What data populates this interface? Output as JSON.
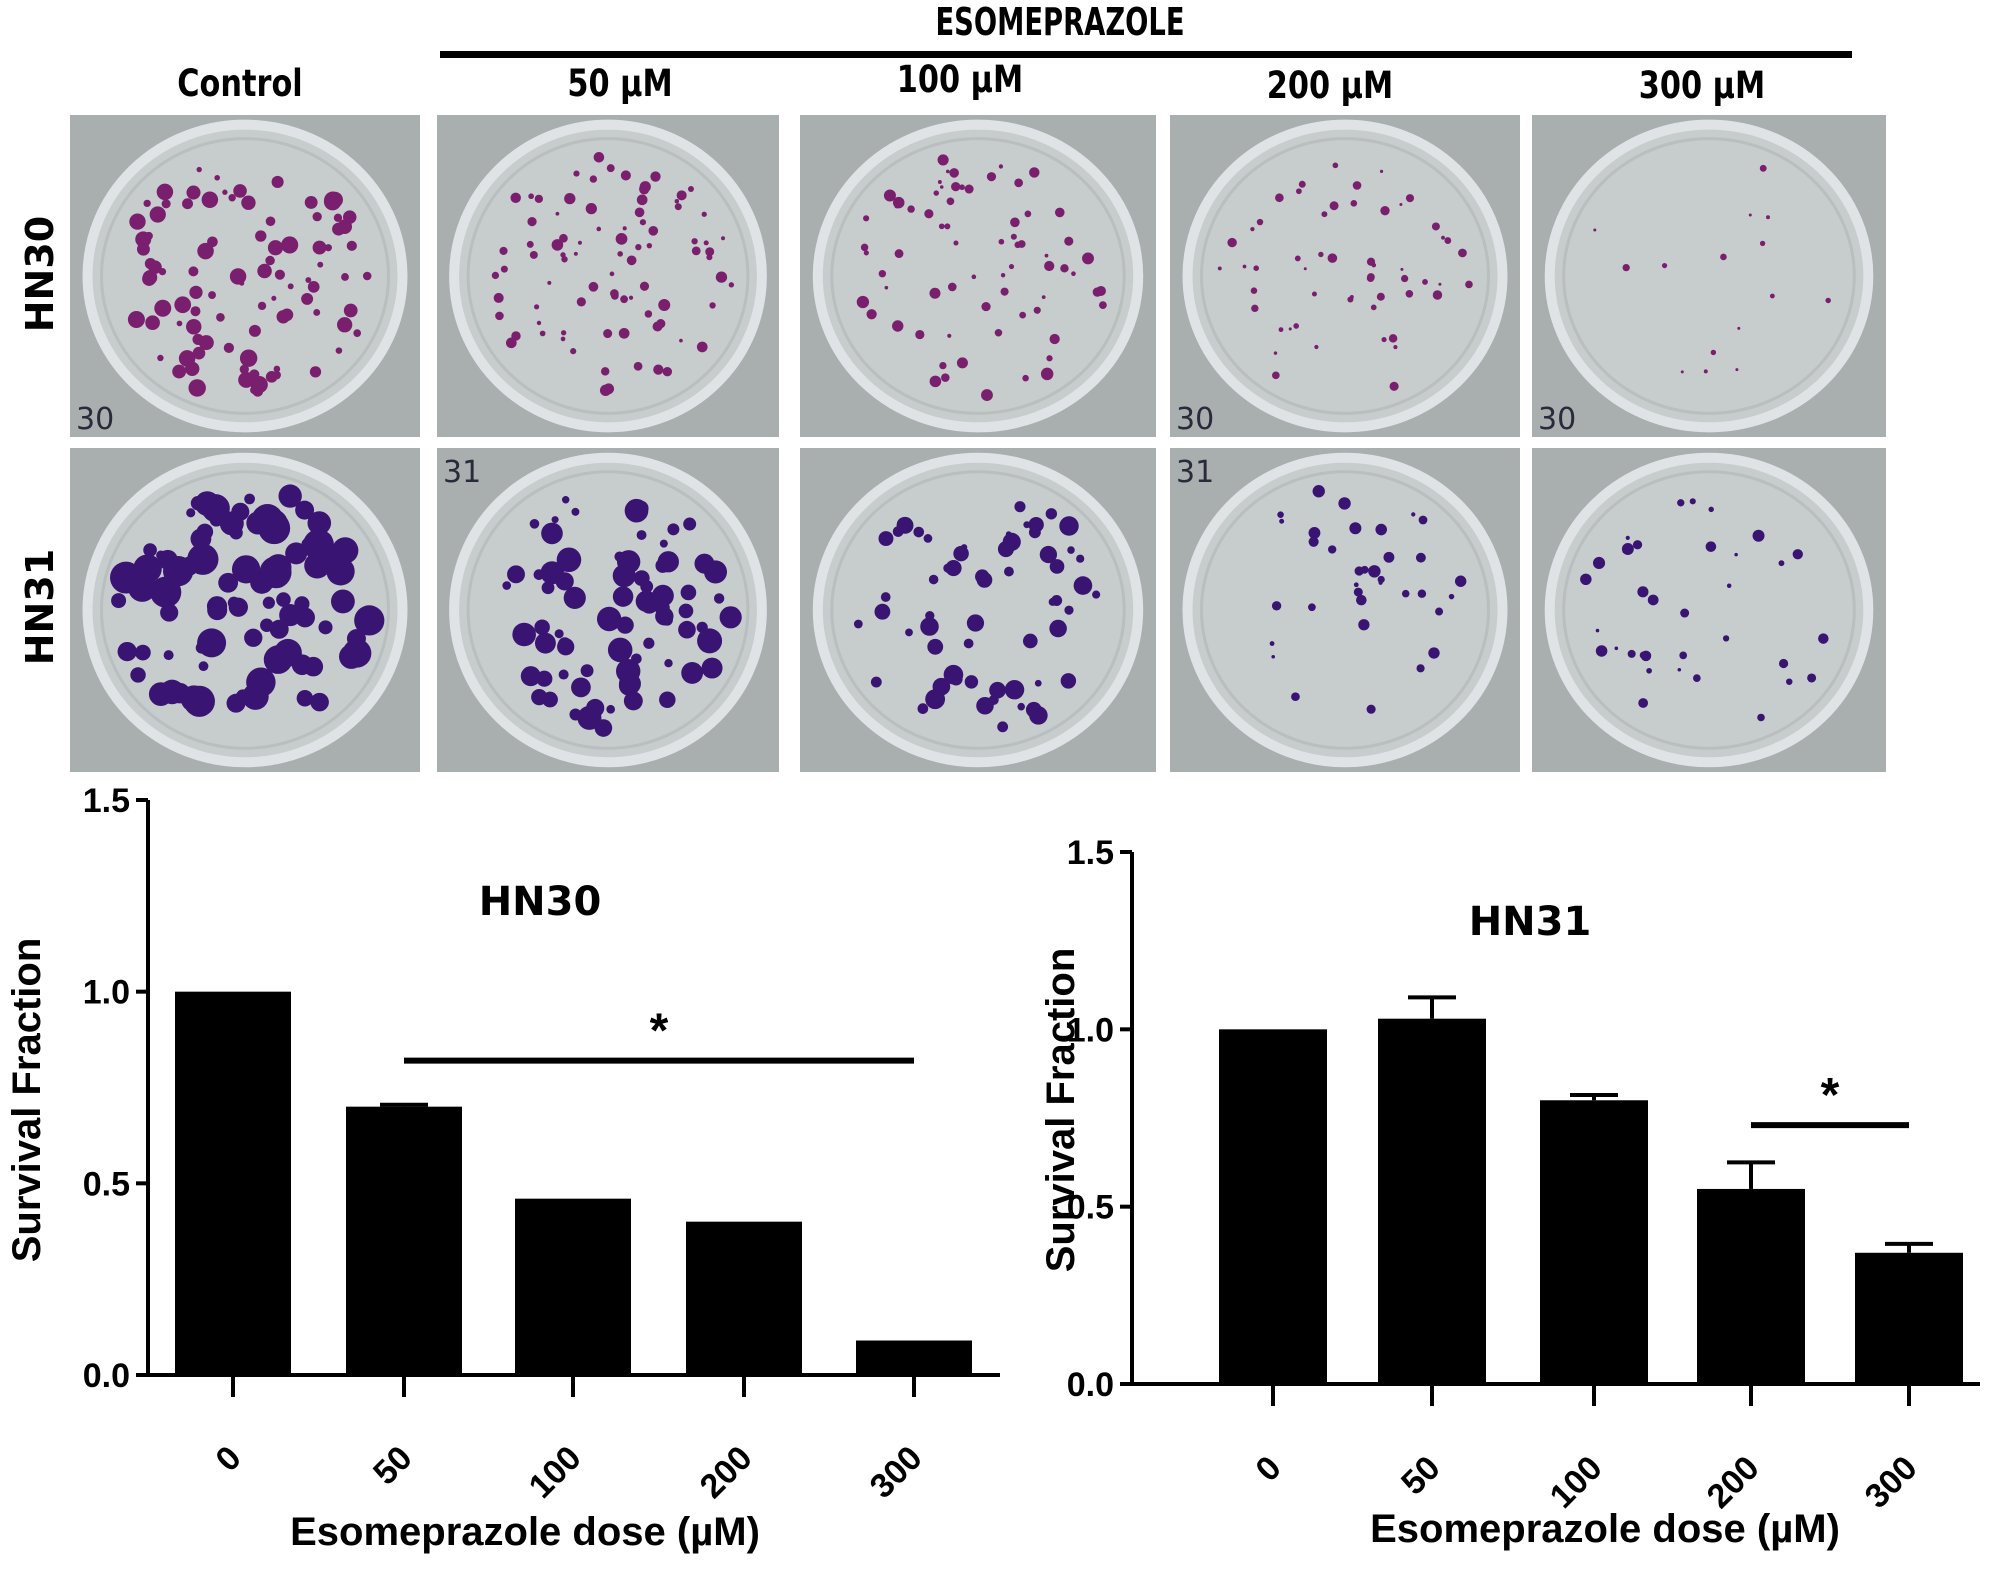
{
  "figure": {
    "drug_header": "ESOMEPRAZOLE",
    "columns": [
      {
        "label": "Control"
      },
      {
        "label": "50 µM"
      },
      {
        "label": "100 µM"
      },
      {
        "label": "200 µM"
      },
      {
        "label": "300 µM"
      }
    ],
    "rows": [
      {
        "label": "HN30"
      },
      {
        "label": "HN31"
      }
    ],
    "plate_colors": {
      "background": "#a8afae",
      "dish": "#c7cccc",
      "rim": "#dfe3e6",
      "colony_hn30": "#7a1f6e",
      "colony_hn31": "#3a1473"
    },
    "plates": [
      [
        {
          "colonies": 95,
          "size": 7,
          "annotation": "30"
        },
        {
          "colonies": 85,
          "size": 5,
          "annotation": ""
        },
        {
          "colonies": 70,
          "size": 5,
          "annotation": ""
        },
        {
          "colonies": 55,
          "size": 4,
          "annotation": "30"
        },
        {
          "colonies": 15,
          "size": 3,
          "annotation": "30"
        }
      ],
      [
        {
          "colonies": 90,
          "size": 13,
          "annotation": ""
        },
        {
          "colonies": 80,
          "size": 10,
          "annotation": "31"
        },
        {
          "colonies": 60,
          "size": 8,
          "annotation": ""
        },
        {
          "colonies": 35,
          "size": 5,
          "annotation": "31"
        },
        {
          "colonies": 35,
          "size": 5,
          "annotation": ""
        }
      ]
    ]
  },
  "chart_data": [
    {
      "type": "bar",
      "title": "HN30",
      "xlabel": "Esomeprazole dose (µM)",
      "ylabel": "Survival Fraction",
      "categories": [
        "0",
        "50",
        "100",
        "200",
        "300"
      ],
      "values": [
        1.0,
        0.7,
        0.46,
        0.4,
        0.09
      ],
      "error": [
        0.0,
        0.005,
        0.0,
        0.0,
        0.0
      ],
      "ylim": [
        0,
        1.5
      ],
      "yticks": [
        "0.0",
        "0.5",
        "1.0",
        "1.5"
      ],
      "significance": {
        "label": "*",
        "from": "50",
        "to": "300",
        "y": 0.82
      },
      "bar_color": "#000000",
      "grid": false
    },
    {
      "type": "bar",
      "title": "HN31",
      "xlabel": "Esomeprazole dose (µM)",
      "ylabel": "Survival Fraction",
      "categories": [
        "0",
        "50",
        "100",
        "200",
        "300"
      ],
      "values": [
        1.0,
        1.03,
        0.8,
        0.55,
        0.37
      ],
      "error": [
        0.0,
        0.06,
        0.015,
        0.075,
        0.025
      ],
      "ylim": [
        0,
        1.5
      ],
      "yticks": [
        "0.0",
        "0.5",
        "1.0",
        "1.5"
      ],
      "significance": {
        "label": "*",
        "from": "200",
        "to": "300",
        "y": 0.73
      },
      "bar_color": "#000000",
      "grid": false
    }
  ]
}
